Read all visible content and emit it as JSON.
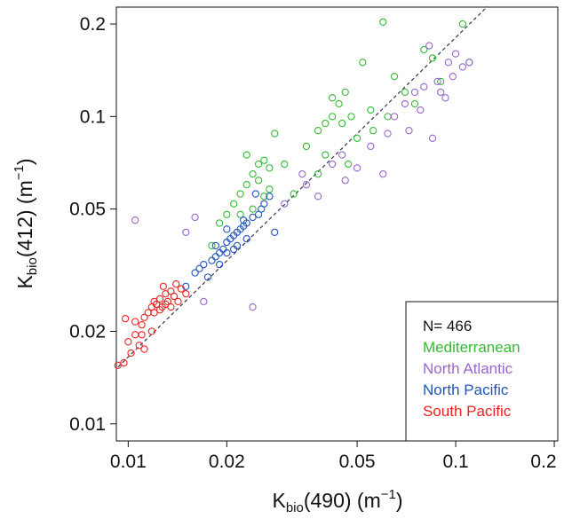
{
  "chart_data": {
    "type": "scatter",
    "xscale": "log",
    "yscale": "log",
    "xlim": [
      0.0092,
      0.205
    ],
    "ylim": [
      0.0088,
      0.227
    ],
    "xticks": [
      0.01,
      0.02,
      0.05,
      0.1,
      0.2
    ],
    "yticks": [
      0.01,
      0.02,
      0.05,
      0.1,
      0.2
    ],
    "x_label": {
      "main": "K",
      "sub": "bio",
      "rest": "(490) (m",
      "sup": "−1",
      "end": ")"
    },
    "y_label": {
      "main": "K",
      "sub": "bio",
      "rest": "(412) (m",
      "sup": "−1",
      "end": ")"
    },
    "legend_position": "bottom-right",
    "legend_note": "N= 466",
    "reference_line": {
      "x": [
        0.0093,
        0.125
      ],
      "y": [
        0.0153,
        0.228
      ],
      "color": "#333355"
    },
    "series": [
      {
        "name": "Mediterranean",
        "color": "#33bb33",
        "x": [
          0.018,
          0.019,
          0.02,
          0.021,
          0.022,
          0.023,
          0.024,
          0.025,
          0.026,
          0.027,
          0.028,
          0.023,
          0.025,
          0.026,
          0.024,
          0.022,
          0.035,
          0.038,
          0.04,
          0.042,
          0.044,
          0.046,
          0.048,
          0.05,
          0.052,
          0.055,
          0.045,
          0.042,
          0.04,
          0.047,
          0.038,
          0.06,
          0.065,
          0.07,
          0.075,
          0.08,
          0.085,
          0.09,
          0.105,
          0.11,
          0.062,
          0.056,
          0.03,
          0.032,
          0.027
        ],
        "values": [
          0.038,
          0.045,
          0.048,
          0.052,
          0.056,
          0.06,
          0.065,
          0.07,
          0.072,
          0.068,
          0.088,
          0.075,
          0.062,
          0.055,
          0.05,
          0.048,
          0.08,
          0.09,
          0.095,
          0.1,
          0.11,
          0.12,
          0.1,
          0.085,
          0.15,
          0.105,
          0.095,
          0.115,
          0.075,
          0.07,
          0.065,
          0.203,
          0.135,
          0.12,
          0.11,
          0.165,
          0.155,
          0.13,
          0.2,
          0.15,
          0.1,
          0.09,
          0.07,
          0.056,
          0.058
        ]
      },
      {
        "name": "North Atlantic",
        "color": "#9966cc",
        "x": [
          0.0105,
          0.015,
          0.016,
          0.017,
          0.024,
          0.03,
          0.035,
          0.038,
          0.042,
          0.046,
          0.05,
          0.055,
          0.06,
          0.062,
          0.065,
          0.07,
          0.072,
          0.075,
          0.08,
          0.085,
          0.088,
          0.09,
          0.095,
          0.1,
          0.105,
          0.11,
          0.098,
          0.093,
          0.083,
          0.078,
          0.045,
          0.034
        ],
        "values": [
          0.046,
          0.042,
          0.047,
          0.025,
          0.024,
          0.052,
          0.06,
          0.055,
          0.07,
          0.062,
          0.068,
          0.08,
          0.065,
          0.088,
          0.1,
          0.11,
          0.09,
          0.12,
          0.125,
          0.085,
          0.13,
          0.12,
          0.15,
          0.16,
          0.145,
          0.15,
          0.135,
          0.115,
          0.17,
          0.105,
          0.075,
          0.065
        ]
      },
      {
        "name": "North Pacific",
        "color": "#2255bb",
        "x": [
          0.0122,
          0.015,
          0.016,
          0.017,
          0.0175,
          0.018,
          0.0185,
          0.019,
          0.0195,
          0.02,
          0.0205,
          0.021,
          0.0215,
          0.022,
          0.0225,
          0.023,
          0.024,
          0.025,
          0.026,
          0.027,
          0.0165,
          0.0185,
          0.02,
          0.0215,
          0.023,
          0.0245,
          0.02,
          0.019,
          0.021,
          0.0225,
          0.0255,
          0.028
        ],
        "values": [
          0.0245,
          0.028,
          0.031,
          0.033,
          0.03,
          0.034,
          0.035,
          0.033,
          0.037,
          0.039,
          0.04,
          0.041,
          0.038,
          0.043,
          0.044,
          0.045,
          0.047,
          0.048,
          0.052,
          0.055,
          0.032,
          0.038,
          0.036,
          0.042,
          0.04,
          0.056,
          0.043,
          0.036,
          0.037,
          0.046,
          0.05,
          0.042
        ]
      },
      {
        "name": "South Pacific",
        "color": "#ee2222",
        "x": [
          0.0093,
          0.0097,
          0.01,
          0.0102,
          0.0105,
          0.0108,
          0.011,
          0.0112,
          0.0115,
          0.0118,
          0.012,
          0.0122,
          0.0125,
          0.0127,
          0.013,
          0.0132,
          0.0135,
          0.0138,
          0.014,
          0.0145,
          0.015,
          0.0118,
          0.0125,
          0.013,
          0.011,
          0.0105,
          0.0098,
          0.0135,
          0.0128,
          0.012,
          0.0142,
          0.0112
        ],
        "values": [
          0.0155,
          0.0158,
          0.0185,
          0.017,
          0.0195,
          0.018,
          0.021,
          0.0222,
          0.023,
          0.024,
          0.025,
          0.0245,
          0.0255,
          0.024,
          0.0265,
          0.025,
          0.027,
          0.026,
          0.0285,
          0.0275,
          0.0265,
          0.02,
          0.0235,
          0.0245,
          0.0195,
          0.0215,
          0.022,
          0.024,
          0.028,
          0.023,
          0.025,
          0.0175
        ]
      }
    ]
  }
}
